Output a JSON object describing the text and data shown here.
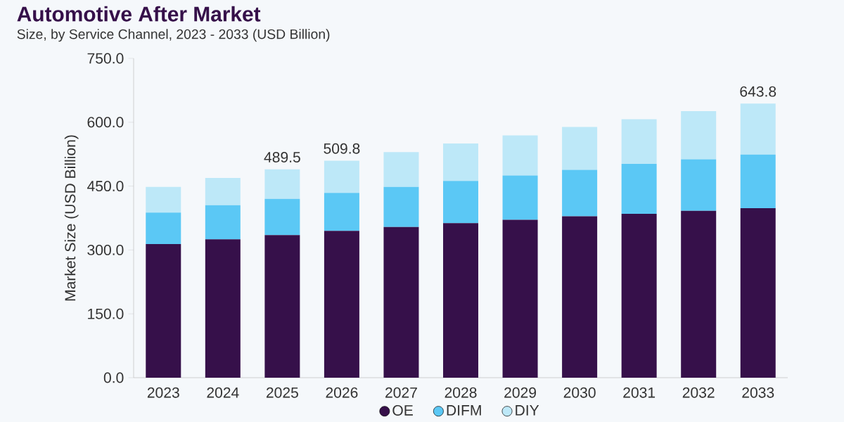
{
  "chart_data": {
    "type": "bar",
    "stacked": true,
    "title": "Automotive After Market",
    "subtitle": "Size, by Service Channel, 2023 - 2033 (USD Billion)",
    "ylabel": "Market Size (USD Billion)",
    "categories": [
      "2023",
      "2024",
      "2025",
      "2026",
      "2027",
      "2028",
      "2029",
      "2030",
      "2031",
      "2032",
      "2033"
    ],
    "series": [
      {
        "name": "OE",
        "color": "#36104a",
        "values": [
          314,
          325,
          335,
          345,
          354,
          363,
          371,
          379,
          385,
          392,
          398
        ]
      },
      {
        "name": "DIFM",
        "color": "#5bc8f5",
        "values": [
          74,
          80,
          85,
          89,
          94,
          99,
          104,
          109,
          117,
          121,
          126
        ]
      },
      {
        "name": "DIY",
        "color": "#bde8f8",
        "values": [
          60,
          64,
          69.5,
          75.8,
          82,
          88,
          94,
          101,
          105,
          113,
          119.8
        ]
      }
    ],
    "totals": [
      null,
      null,
      "489.5",
      "509.8",
      null,
      null,
      null,
      null,
      null,
      null,
      "643.8"
    ],
    "ylim": [
      0,
      750
    ],
    "yticks": [
      {
        "value": 0,
        "label": "0.0"
      },
      {
        "value": 150,
        "label": "150.0"
      },
      {
        "value": 300,
        "label": "300.0"
      },
      {
        "value": 450,
        "label": "450.0"
      },
      {
        "value": 600,
        "label": "600.0"
      },
      {
        "value": 750,
        "label": "750.0"
      }
    ],
    "legend": "bottom",
    "marker": "circle"
  }
}
